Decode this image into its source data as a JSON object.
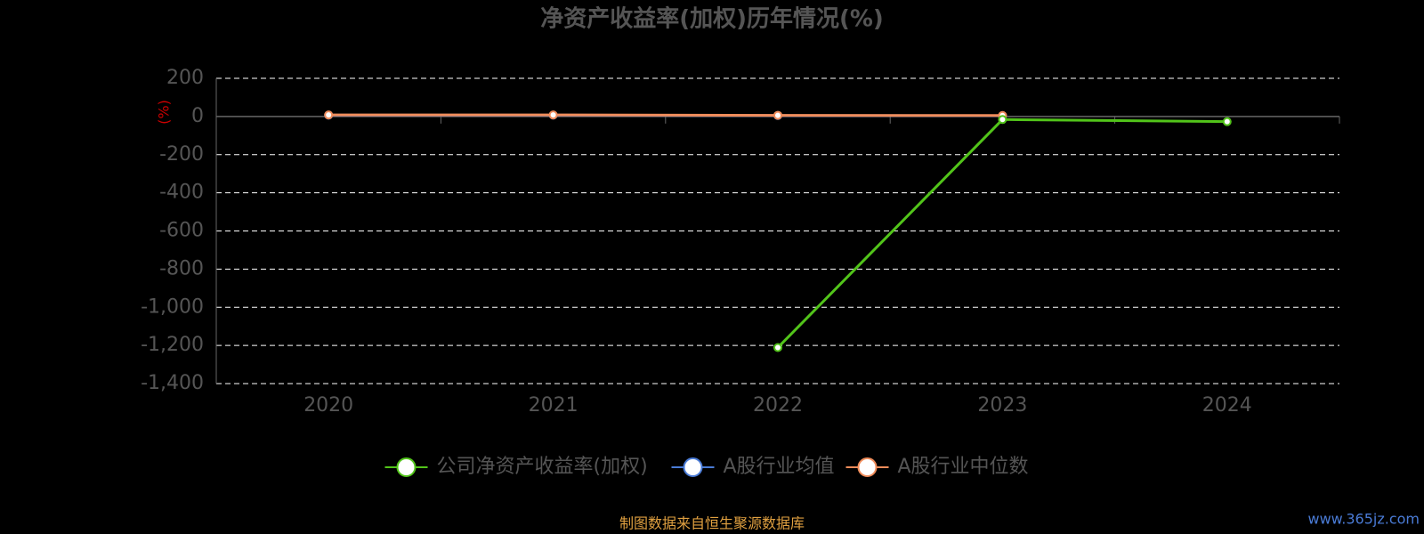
{
  "chart_data": {
    "type": "line",
    "title": "净资产收益率(加权)历年情况(%)",
    "y_label": "(%)",
    "categories": [
      "2020",
      "2021",
      "2022",
      "2023",
      "2024"
    ],
    "series": [
      {
        "name": "公司净资产收益率(加权)",
        "color": "#52c41a",
        "values": [
          null,
          null,
          -1211,
          -16,
          -27
        ]
      },
      {
        "name": "A股行业均值",
        "color": "#4a7bd6",
        "values": [
          7,
          7,
          5,
          4,
          null
        ]
      },
      {
        "name": "A股行业中位数",
        "color": "#f08c5a",
        "values": [
          8,
          8,
          6,
          5,
          null
        ]
      }
    ],
    "ylim": [
      -1400,
      200
    ],
    "yticks": [
      {
        "value": -1400,
        "label": "-1,400"
      },
      {
        "value": -1200,
        "label": "-1,200"
      },
      {
        "value": -1000,
        "label": "-1,000"
      },
      -800,
      -600,
      -400,
      -200,
      0,
      200
    ],
    "grid": true,
    "source": "制图数据来自恒生聚源数据库",
    "watermark": "www.365jz.com"
  }
}
